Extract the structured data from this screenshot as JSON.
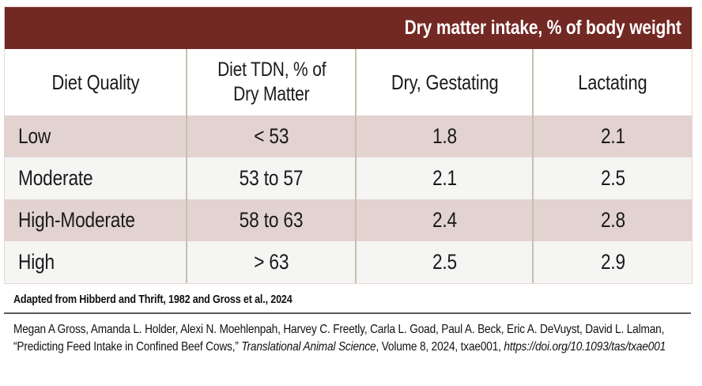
{
  "title_bar": {
    "label": "Dry matter intake, % of body weight"
  },
  "table": {
    "headers": {
      "col1": "Diet Quality",
      "col2_line1": "Diet TDN, % of",
      "col2_line2": "Dry Matter",
      "col3": "Dry, Gestating",
      "col4": "Lactating"
    },
    "rows": [
      {
        "quality": "Low",
        "tdn": "< 53",
        "dry_gestating": "1.8",
        "lactating": "2.1"
      },
      {
        "quality": "Moderate",
        "tdn": "53 to 57",
        "dry_gestating": "2.1",
        "lactating": "2.5"
      },
      {
        "quality": "High-Moderate",
        "tdn": "58 to 63",
        "dry_gestating": "2.4",
        "lactating": "2.8"
      },
      {
        "quality": "High",
        "tdn": "> 63",
        "dry_gestating": "2.5",
        "lactating": "2.9"
      }
    ]
  },
  "footnote": {
    "text": "Adapted from Hibberd and Thrift, 1982 and Gross et al., 2024"
  },
  "citation": {
    "authors": "Megan A Gross, Amanda L. Holder, Alexi N. Moehlenpah, Harvey C. Freetly, Carla L. Goad, Paul A. Beck, Eric A. DeVuyst, David L. Lalman, ",
    "article_title": "“Predicting Feed Intake in Confined Beef Cows,” ",
    "journal": "Translational Animal Science",
    "middle": ", Volume 8, 2024, txae001, ",
    "doi": "https://doi.org/10.1093/tas/txae001"
  },
  "colors": {
    "header_bar": "#722823",
    "row_pink": "#e2d3d1",
    "row_light": "#f5f5f4",
    "column_divider": "#c9bfad",
    "outer_border": "#e7d6d2",
    "rule": "#5a5b5d"
  }
}
